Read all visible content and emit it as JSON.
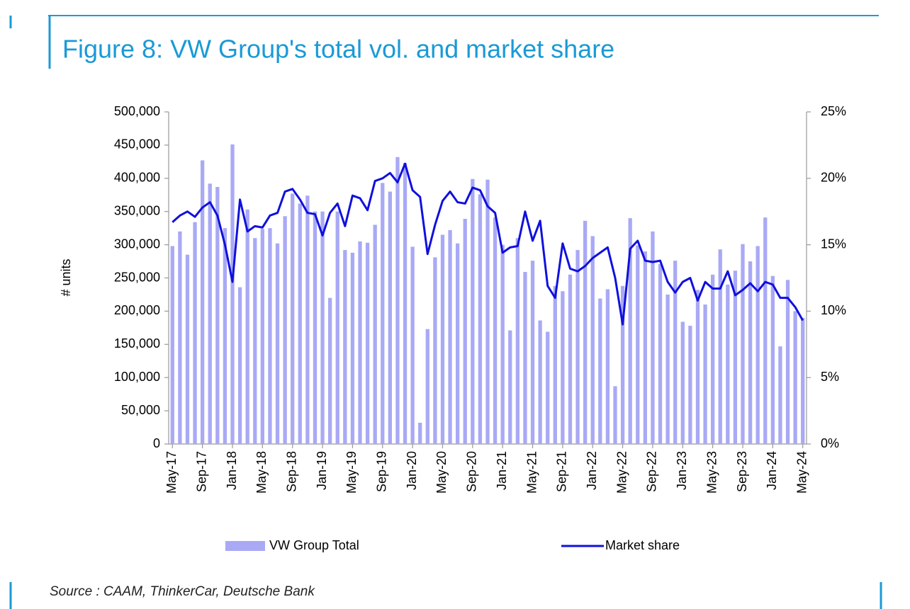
{
  "chart_data": {
    "type": "bar_line",
    "title": "Figure 8: VW Group's total vol. and market share",
    "y_label": "# units",
    "source": "Source : CAAM, ThinkerCar, Deutsche Bank",
    "categories": [
      "May-17",
      null,
      null,
      null,
      "Sep-17",
      null,
      null,
      null,
      "Jan-18",
      null,
      null,
      null,
      "May-18",
      null,
      null,
      null,
      "Sep-18",
      null,
      null,
      null,
      "Jan-19",
      null,
      null,
      null,
      "May-19",
      null,
      null,
      null,
      "Sep-19",
      null,
      null,
      null,
      "Jan-20",
      null,
      null,
      null,
      "May-20",
      null,
      null,
      null,
      "Sep-20",
      null,
      null,
      null,
      "Jan-21",
      null,
      null,
      null,
      "May-21",
      null,
      null,
      null,
      "Sep-21",
      null,
      null,
      null,
      "Jan-22",
      null,
      null,
      null,
      "May-22",
      null,
      null,
      null,
      "Sep-22",
      null,
      null,
      null,
      "Jan-23",
      null,
      null,
      null,
      "May-23",
      null,
      null,
      null,
      "Sep-23",
      null,
      null,
      null,
      "Jan-24",
      null,
      null,
      null,
      "May-24"
    ],
    "series": [
      {
        "name": "VW Group Total",
        "type": "bar",
        "color": "#a9a9f6",
        "values": [
          298000,
          320000,
          285000,
          334000,
          427000,
          392000,
          387000,
          325000,
          451000,
          236000,
          353000,
          310000,
          324000,
          325000,
          302000,
          343000,
          377000,
          362000,
          374000,
          350000,
          350000,
          220000,
          350000,
          292000,
          288000,
          305000,
          303000,
          330000,
          393000,
          380000,
          432000,
          423000,
          297000,
          32000,
          173000,
          281000,
          315000,
          322000,
          302000,
          339000,
          399000,
          376000,
          398000,
          341000,
          300000,
          171000,
          310000,
          259000,
          276000,
          186000,
          169000,
          238000,
          230000,
          255000,
          292000,
          336000,
          313000,
          219000,
          233000,
          87000,
          238000,
          340000,
          299000,
          290000,
          320000,
          271000,
          225000,
          276000,
          184000,
          178000,
          232000,
          210000,
          255000,
          293000,
          240000,
          261000,
          301000,
          275000,
          298000,
          341000,
          253000,
          147000,
          247000,
          200000,
          190000
        ]
      },
      {
        "name": "Market share",
        "type": "line",
        "axis": "y2",
        "color": "#1010dd",
        "values": [
          16.7,
          17.2,
          17.5,
          17.1,
          17.8,
          18.2,
          17.2,
          15.0,
          12.2,
          18.4,
          16.0,
          16.4,
          16.3,
          17.2,
          17.4,
          19.0,
          19.2,
          18.4,
          17.4,
          17.3,
          15.7,
          17.4,
          18.1,
          16.4,
          18.7,
          18.5,
          17.6,
          19.8,
          20.0,
          20.4,
          19.7,
          21.1,
          19.1,
          18.6,
          14.3,
          16.5,
          18.3,
          19.0,
          18.2,
          18.1,
          19.3,
          19.1,
          17.9,
          17.4,
          14.4,
          14.8,
          14.9,
          17.5,
          15.3,
          16.8,
          11.9,
          11.0,
          15.1,
          13.2,
          13.0,
          13.4,
          14.0,
          14.4,
          14.8,
          12.5,
          9.0,
          14.7,
          15.3,
          13.8,
          13.7,
          13.8,
          12.2,
          11.4,
          12.2,
          12.5,
          10.8,
          12.2,
          11.7,
          11.7,
          13.0,
          11.2,
          11.6,
          12.1,
          11.5,
          12.2,
          12.0,
          11.0,
          11.0,
          10.3,
          9.3
        ]
      }
    ],
    "ylim": [
      0,
      500000
    ],
    "yticks": [
      0,
      {
        "value": 50000,
        "label": "50,000"
      },
      {
        "value": 100000,
        "label": "100,000"
      },
      {
        "value": 150000,
        "label": "150,000"
      },
      {
        "value": 200000,
        "label": "200,000"
      },
      {
        "value": 250000,
        "label": "250,000"
      },
      {
        "value": 300000,
        "label": "300,000"
      },
      {
        "value": 350000,
        "label": "350,000"
      },
      {
        "value": 400000,
        "label": "400,000"
      },
      {
        "value": 450000,
        "label": "450,000"
      },
      {
        "value": 500000,
        "label": "500,000"
      }
    ],
    "y2lim": [
      0,
      25
    ],
    "y2ticks": [
      {
        "value": 0,
        "label": "0%"
      },
      {
        "value": 5,
        "label": "5%"
      },
      {
        "value": 10,
        "label": "10%"
      },
      {
        "value": 15,
        "label": "15%"
      },
      {
        "value": 20,
        "label": "20%"
      },
      {
        "value": 25,
        "label": "25%"
      }
    ],
    "legend": "bottom"
  }
}
